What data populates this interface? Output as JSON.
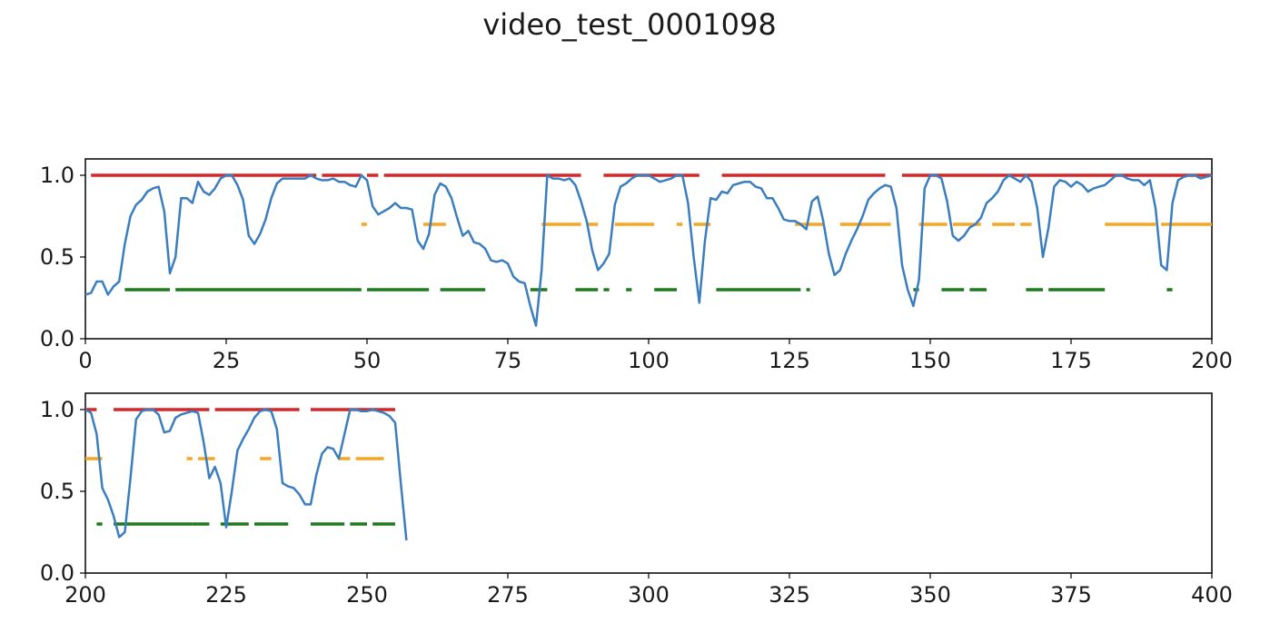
{
  "title": "video_test_0001098",
  "colors": {
    "curve": "#3a7ebf",
    "red": "#d62728",
    "orange": "#f5a623",
    "green": "#1b7a1b"
  },
  "chart_data": [
    {
      "type": "line",
      "xlim": [
        0,
        200
      ],
      "ylim": [
        0,
        1.1
      ],
      "xticks": [
        "0",
        "25",
        "50",
        "75",
        "100",
        "125",
        "150",
        "175",
        "200"
      ],
      "yticks": [
        "0.0",
        "0.5",
        "1.0"
      ],
      "series": [
        {
          "x": [
            0,
            1,
            2,
            3,
            4,
            5,
            6,
            7,
            8,
            9,
            10,
            11,
            12,
            13,
            14,
            15,
            16,
            17,
            18,
            19,
            20,
            21,
            22,
            23,
            24,
            25,
            26,
            27,
            28,
            29,
            30,
            31,
            32,
            33,
            34,
            35,
            36,
            37,
            38,
            39,
            40,
            41,
            42,
            43,
            44,
            45,
            46,
            47,
            48,
            49,
            50,
            51,
            52,
            53,
            54,
            55,
            56,
            57,
            58,
            59,
            60,
            61,
            62,
            63,
            64,
            65,
            66,
            67,
            68,
            69,
            70,
            71,
            72,
            73,
            74,
            75,
            76,
            77,
            78,
            79,
            80,
            81,
            82,
            83,
            84,
            85,
            86,
            87,
            88,
            89,
            90,
            91,
            92,
            93,
            94,
            95,
            96,
            97,
            98,
            99,
            100,
            101,
            102,
            103,
            104,
            105,
            106,
            107,
            108,
            109,
            110,
            111,
            112,
            113,
            114,
            115,
            116,
            117,
            118,
            119,
            120,
            121,
            122,
            123,
            124,
            125,
            126,
            127,
            128,
            129,
            130,
            131,
            132,
            133,
            134,
            135,
            136,
            137,
            138,
            139,
            140,
            141,
            142,
            143,
            144,
            145,
            146,
            147,
            148,
            149,
            150,
            151,
            152,
            153,
            154,
            155,
            156,
            157,
            158,
            159,
            160,
            161,
            162,
            163,
            164,
            165,
            166,
            167,
            168,
            169,
            170,
            171,
            172,
            173,
            174,
            175,
            176,
            177,
            178,
            179,
            180,
            181,
            182,
            183,
            184,
            185,
            186,
            187,
            188,
            189,
            190,
            191,
            192,
            193,
            194,
            195,
            196,
            197,
            198,
            199,
            200
          ],
          "values": [
            0.27,
            0.28,
            0.35,
            0.35,
            0.27,
            0.32,
            0.35,
            0.58,
            0.75,
            0.82,
            0.85,
            0.9,
            0.92,
            0.93,
            0.78,
            0.4,
            0.5,
            0.86,
            0.86,
            0.83,
            0.96,
            0.9,
            0.88,
            0.92,
            0.98,
            1.0,
            1.0,
            0.94,
            0.85,
            0.63,
            0.58,
            0.64,
            0.73,
            0.86,
            0.95,
            0.98,
            0.98,
            0.98,
            0.98,
            0.98,
            1.0,
            0.98,
            0.97,
            0.97,
            0.98,
            0.96,
            0.96,
            0.94,
            0.93,
            1.0,
            0.97,
            0.81,
            0.76,
            0.78,
            0.8,
            0.83,
            0.8,
            0.8,
            0.79,
            0.6,
            0.55,
            0.64,
            0.88,
            0.95,
            0.93,
            0.86,
            0.74,
            0.63,
            0.66,
            0.59,
            0.58,
            0.55,
            0.48,
            0.47,
            0.48,
            0.46,
            0.38,
            0.35,
            0.34,
            0.2,
            0.08,
            0.42,
            1.0,
            0.98,
            0.98,
            0.97,
            0.98,
            0.94,
            0.84,
            0.72,
            0.54,
            0.42,
            0.46,
            0.52,
            0.82,
            0.93,
            0.95,
            0.98,
            1.0,
            1.0,
            1.0,
            0.98,
            0.96,
            0.97,
            0.98,
            1.0,
            1.0,
            0.83,
            0.5,
            0.22,
            0.6,
            0.86,
            0.85,
            0.9,
            0.89,
            0.94,
            0.95,
            0.96,
            0.96,
            0.93,
            0.92,
            0.86,
            0.86,
            0.8,
            0.73,
            0.72,
            0.72,
            0.7,
            0.67,
            0.84,
            0.87,
            0.72,
            0.52,
            0.39,
            0.42,
            0.52,
            0.6,
            0.67,
            0.75,
            0.85,
            0.89,
            0.92,
            0.94,
            0.93,
            0.8,
            0.45,
            0.3,
            0.2,
            0.36,
            0.92,
            1.0,
            1.0,
            0.98,
            0.84,
            0.63,
            0.6,
            0.63,
            0.68,
            0.7,
            0.74,
            0.83,
            0.86,
            0.9,
            0.97,
            1.0,
            0.98,
            0.96,
            1.0,
            0.96,
            0.8,
            0.5,
            0.68,
            0.93,
            0.97,
            0.96,
            0.93,
            0.96,
            0.94,
            0.9,
            0.92,
            0.93,
            0.94,
            0.97,
            1.0,
            1.0,
            0.98,
            0.97,
            0.97,
            0.94,
            0.97,
            0.8,
            0.45,
            0.42,
            0.83,
            0.97,
            0.99,
            1.0,
            1.0,
            0.98,
            0.99,
            1.0
          ]
        }
      ],
      "segments": {
        "red_y": 1.0,
        "red": [
          [
            1,
            41
          ],
          [
            42,
            49
          ],
          [
            50,
            52
          ],
          [
            53,
            88
          ],
          [
            92,
            109
          ],
          [
            113,
            142
          ],
          [
            145,
            200
          ]
        ],
        "orange_y": 0.7,
        "orange": [
          [
            49,
            50
          ],
          [
            60,
            64
          ],
          [
            81,
            88
          ],
          [
            89,
            91
          ],
          [
            94,
            97
          ],
          [
            97,
            101
          ],
          [
            105,
            106
          ],
          [
            108,
            111
          ],
          [
            126,
            131
          ],
          [
            134,
            143
          ],
          [
            148,
            153
          ],
          [
            154,
            159
          ],
          [
            161,
            165
          ],
          [
            166,
            168
          ],
          [
            181,
            190
          ],
          [
            191,
            200
          ]
        ],
        "green_y": 0.3,
        "green": [
          [
            7,
            15
          ],
          [
            16,
            49
          ],
          [
            50,
            61
          ],
          [
            63,
            71
          ],
          [
            79,
            80
          ],
          [
            80,
            82
          ],
          [
            87,
            91
          ],
          [
            92,
            93
          ],
          [
            96,
            97
          ],
          [
            101,
            105
          ],
          [
            112,
            127
          ],
          [
            128,
            128
          ],
          [
            147,
            148
          ],
          [
            152,
            156
          ],
          [
            157,
            160
          ],
          [
            167,
            170
          ],
          [
            171,
            181
          ],
          [
            192,
            193
          ]
        ]
      }
    },
    {
      "type": "line",
      "xlim": [
        200,
        400
      ],
      "ylim": [
        0,
        1.1
      ],
      "xticks": [
        "200",
        "225",
        "250",
        "275",
        "300",
        "325",
        "350",
        "375",
        "400"
      ],
      "yticks": [
        "0.0",
        "0.5",
        "1.0"
      ],
      "series": [
        {
          "x": [
            200,
            201,
            202,
            203,
            204,
            205,
            206,
            207,
            208,
            209,
            210,
            211,
            212,
            213,
            214,
            215,
            216,
            217,
            218,
            219,
            220,
            221,
            222,
            223,
            224,
            225,
            226,
            227,
            228,
            229,
            230,
            231,
            232,
            233,
            234,
            235,
            236,
            237,
            238,
            239,
            240,
            241,
            242,
            243,
            244,
            245,
            246,
            247,
            248,
            249,
            250,
            251,
            252,
            253,
            254,
            255,
            256,
            257
          ],
          "values": [
            1.0,
            0.98,
            0.85,
            0.52,
            0.45,
            0.35,
            0.22,
            0.25,
            0.58,
            0.94,
            0.99,
            1.0,
            1.0,
            0.97,
            0.86,
            0.87,
            0.95,
            0.97,
            0.98,
            0.99,
            0.98,
            0.8,
            0.58,
            0.65,
            0.55,
            0.28,
            0.5,
            0.75,
            0.82,
            0.88,
            0.95,
            0.99,
            1.0,
            0.99,
            0.88,
            0.55,
            0.53,
            0.52,
            0.48,
            0.42,
            0.42,
            0.6,
            0.73,
            0.77,
            0.76,
            0.7,
            0.85,
            1.0,
            1.0,
            0.99,
            0.99,
            1.0,
            0.99,
            0.98,
            0.96,
            0.92,
            0.55,
            0.2
          ]
        }
      ],
      "segments": {
        "red_y": 1.0,
        "red": [
          [
            200,
            202
          ],
          [
            205,
            222
          ],
          [
            223,
            238
          ],
          [
            240,
            255
          ]
        ],
        "orange_y": 0.7,
        "orange": [
          [
            200,
            203
          ],
          [
            218,
            219
          ],
          [
            220,
            223
          ],
          [
            231,
            233
          ],
          [
            245,
            247
          ],
          [
            248,
            253
          ]
        ],
        "green_y": 0.3,
        "green": [
          [
            202,
            203
          ],
          [
            205,
            219
          ],
          [
            219,
            222
          ],
          [
            224,
            229
          ],
          [
            230,
            236
          ],
          [
            240,
            246
          ],
          [
            247,
            250
          ],
          [
            251,
            255
          ]
        ]
      }
    }
  ]
}
